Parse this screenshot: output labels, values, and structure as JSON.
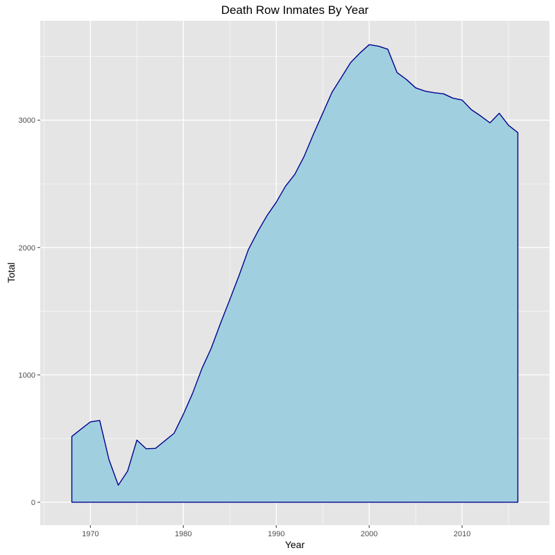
{
  "chart_data": {
    "type": "area",
    "title": "Death Row Inmates By Year",
    "xlabel": "Year",
    "ylabel": "Total",
    "xlim": [
      1964.6,
      2019.4
    ],
    "ylim": [
      -180,
      3780
    ],
    "x_ticks": [
      1970,
      1980,
      1990,
      2000,
      2010
    ],
    "y_ticks": [
      0,
      1000,
      2000,
      3000
    ],
    "x_tick_labels": [
      "1970",
      "1980",
      "1990",
      "2000",
      "2010"
    ],
    "y_tick_labels": [
      "0",
      "1000",
      "2000",
      "3000"
    ],
    "grid": true,
    "legend": "none",
    "colors": {
      "panel_background": "#e5e5e5",
      "grid_major": "#ffffff",
      "fill": "#a0cfe0",
      "line": "#00008b"
    },
    "x": [
      1968,
      1969,
      1970,
      1971,
      1972,
      1973,
      1974,
      1975,
      1976,
      1977,
      1978,
      1979,
      1980,
      1981,
      1982,
      1983,
      1984,
      1985,
      1986,
      1987,
      1988,
      1989,
      1990,
      1991,
      1992,
      1993,
      1994,
      1995,
      1996,
      1997,
      1998,
      1999,
      2000,
      2001,
      2002,
      2003,
      2004,
      2005,
      2006,
      2007,
      2008,
      2009,
      2010,
      2011,
      2012,
      2013,
      2014,
      2015,
      2016
    ],
    "values": [
      517,
      575,
      631,
      642,
      334,
      134,
      244,
      488,
      420,
      423,
      482,
      541,
      691,
      856,
      1050,
      1209,
      1405,
      1591,
      1781,
      1984,
      2124,
      2250,
      2356,
      2482,
      2575,
      2716,
      2890,
      3054,
      3219,
      3335,
      3452,
      3527,
      3593,
      3581,
      3557,
      3374,
      3320,
      3254,
      3228,
      3215,
      3207,
      3173,
      3158,
      3082,
      3033,
      2979,
      3054,
      2959,
      2902
    ]
  }
}
